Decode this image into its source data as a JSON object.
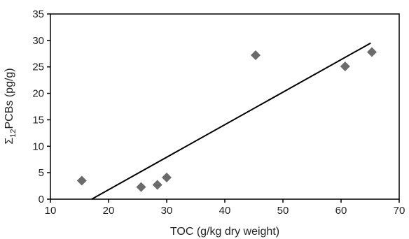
{
  "chart_data": {
    "type": "scatter",
    "title": "",
    "xlabel": "TOC (g/kg dry weight)",
    "ylabel_parts": {
      "sigma": "Σ",
      "subscript": "12",
      "rest": "PCBs (pg/g)"
    },
    "xlim": [
      10,
      70
    ],
    "ylim": [
      0,
      35
    ],
    "xticks": [
      10,
      20,
      30,
      40,
      50,
      60,
      70
    ],
    "yticks": [
      0,
      5,
      10,
      15,
      20,
      25,
      30,
      35
    ],
    "grid": false,
    "legend": "none",
    "marker": "diamond",
    "marker_color": "#6b6b6b",
    "series": [
      {
        "points": [
          {
            "x": 15.4,
            "y": 3.5
          },
          {
            "x": 25.6,
            "y": 2.3
          },
          {
            "x": 28.4,
            "y": 2.7
          },
          {
            "x": 30.0,
            "y": 4.1
          },
          {
            "x": 45.3,
            "y": 27.2
          },
          {
            "x": 60.7,
            "y": 25.1
          },
          {
            "x": 65.3,
            "y": 27.8
          }
        ]
      }
    ],
    "trendline": {
      "type": "linear",
      "x_start": 17.1,
      "x_end": 65.1,
      "y_start": 0,
      "y_end": 29.5,
      "color": "#000000"
    }
  }
}
